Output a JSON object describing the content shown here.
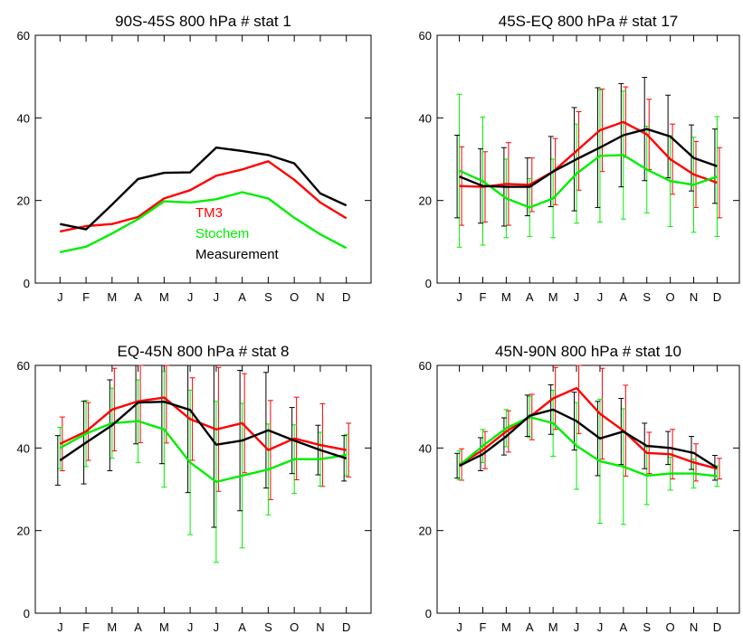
{
  "chart_data": [
    {
      "type": "line",
      "title": "90S-45S 800 hPa # stat 1",
      "categories": [
        "J",
        "F",
        "M",
        "A",
        "M",
        "J",
        "J",
        "A",
        "S",
        "O",
        "N",
        "D"
      ],
      "ylim": [
        0,
        60
      ],
      "yticks": [
        0,
        20,
        40,
        60
      ],
      "error_bars": false,
      "legend": {
        "placement": "lower-right-inside",
        "entries": [
          {
            "label": "TM3",
            "color": "#ff0000"
          },
          {
            "label": "Stochem",
            "color": "#00ee00"
          },
          {
            "label": "Measurement",
            "color": "#000000"
          }
        ]
      },
      "series": [
        {
          "name": "TM3",
          "color": "#ff0000",
          "values": [
            12.5,
            13.8,
            14.3,
            16,
            20.5,
            22.5,
            26,
            27.5,
            29.5,
            25,
            19.5,
            15.7
          ]
        },
        {
          "name": "Stochem",
          "color": "#00ee00",
          "values": [
            7.5,
            8.8,
            12,
            15.5,
            19.8,
            19.5,
            20.3,
            22,
            20.5,
            15.8,
            11.8,
            8.5
          ]
        },
        {
          "name": "Measurement",
          "color": "#000000",
          "values": [
            14.3,
            13,
            19,
            25.2,
            26.7,
            26.8,
            32.8,
            32,
            31,
            29,
            21.7,
            18.8
          ]
        }
      ]
    },
    {
      "type": "line",
      "title": "45S-EQ 800 hPa # stat 17",
      "categories": [
        "J",
        "F",
        "M",
        "A",
        "M",
        "J",
        "J",
        "A",
        "S",
        "O",
        "N",
        "D"
      ],
      "ylim": [
        0,
        60
      ],
      "yticks": [
        0,
        20,
        40,
        60
      ],
      "error_bars": true,
      "series": [
        {
          "name": "TM3",
          "color": "#ff0000",
          "values": [
            23.5,
            23.3,
            24,
            23.8,
            27,
            32,
            37,
            39,
            36,
            30,
            26.3,
            24.3
          ],
          "err": [
            9.5,
            8.5,
            10,
            6.5,
            8,
            9.5,
            10,
            8.5,
            8.5,
            8.5,
            8,
            8.5
          ]
        },
        {
          "name": "Stochem",
          "color": "#00ee00",
          "values": [
            27.2,
            24.7,
            20.5,
            18.3,
            20.5,
            26.5,
            30.8,
            31,
            27.5,
            24.7,
            23.8,
            25.8
          ],
          "err": [
            18.5,
            15.5,
            9.5,
            7,
            9.5,
            12,
            16,
            15.5,
            10.5,
            11,
            11.5,
            14.5
          ]
        },
        {
          "name": "Measurement",
          "color": "#000000",
          "values": [
            25.8,
            23.5,
            23.3,
            23.3,
            27,
            30,
            32.8,
            35.8,
            37.3,
            35.5,
            30.3,
            28.3
          ],
          "err": [
            10,
            9,
            9.5,
            7,
            8.5,
            12.5,
            14.5,
            12.5,
            12.5,
            10,
            8,
            9
          ]
        }
      ]
    },
    {
      "type": "line",
      "title": "EQ-45N 800 hPa # stat 8",
      "categories": [
        "J",
        "F",
        "M",
        "A",
        "M",
        "J",
        "J",
        "A",
        "S",
        "O",
        "N",
        "D"
      ],
      "ylim": [
        0,
        60
      ],
      "yticks": [
        0,
        20,
        40,
        60
      ],
      "error_bars": true,
      "series": [
        {
          "name": "TM3",
          "color": "#ff0000",
          "values": [
            41,
            44,
            49.3,
            51.3,
            52.2,
            47,
            44.5,
            46,
            39.5,
            42.3,
            40.7,
            39.5
          ],
          "err": [
            6.5,
            7,
            10,
            10,
            11,
            10,
            15,
            12,
            12,
            10,
            10,
            6.5
          ]
        },
        {
          "name": "Stochem",
          "color": "#00ee00",
          "values": [
            40,
            43.5,
            46,
            46.5,
            44.5,
            36.5,
            31.8,
            33.3,
            34.8,
            37.3,
            37.3,
            38.3
          ],
          "err": [
            5,
            8,
            8.5,
            10,
            14,
            17.5,
            19.5,
            17.5,
            11,
            8.3,
            6.5,
            5
          ]
        },
        {
          "name": "Measurement",
          "color": "#000000",
          "values": [
            37,
            41.3,
            45.5,
            51,
            51.2,
            49.2,
            40.8,
            41.8,
            44.3,
            41.8,
            39.5,
            37.5
          ],
          "err": [
            6,
            10,
            11,
            10,
            15,
            20,
            20,
            17,
            14,
            8,
            6,
            5.5
          ]
        }
      ]
    },
    {
      "type": "line",
      "title": "45N-90N 800 hPa # stat 10",
      "categories": [
        "J",
        "F",
        "M",
        "A",
        "M",
        "J",
        "J",
        "A",
        "S",
        "O",
        "N",
        "D"
      ],
      "ylim": [
        0,
        60
      ],
      "yticks": [
        0,
        20,
        40,
        60
      ],
      "error_bars": true,
      "series": [
        {
          "name": "TM3",
          "color": "#ff0000",
          "values": [
            36,
            39.5,
            44,
            47.5,
            52,
            54.5,
            48.3,
            44.2,
            38.8,
            38.5,
            36.5,
            35
          ],
          "err": [
            3.8,
            4.5,
            5,
            5.5,
            7.5,
            11,
            11,
            11,
            5,
            6,
            4.5,
            2.5
          ]
        },
        {
          "name": "Stochem",
          "color": "#00ee00",
          "values": [
            35.8,
            40.5,
            44.8,
            47.5,
            46,
            40.5,
            36.8,
            35.5,
            33.3,
            33.8,
            33.8,
            33.2
          ],
          "err": [
            3.5,
            4,
            4.5,
            5,
            8,
            10.5,
            15,
            14,
            7,
            4,
            3.5,
            2.5
          ]
        },
        {
          "name": "Measurement",
          "color": "#000000",
          "values": [
            35.7,
            38.5,
            42.8,
            47.8,
            49.3,
            46.5,
            42.3,
            44,
            40.5,
            40,
            38.8,
            35.2
          ],
          "err": [
            3,
            4,
            4.5,
            5,
            6,
            7,
            9,
            8,
            5.5,
            4,
            4,
            3
          ]
        }
      ]
    }
  ]
}
